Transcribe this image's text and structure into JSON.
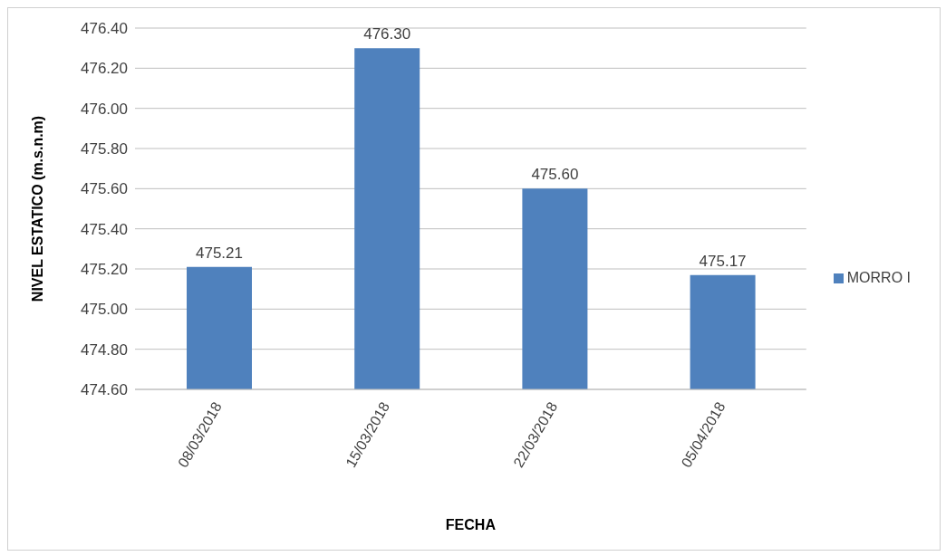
{
  "chart_data": {
    "type": "bar",
    "xlabel": "FECHA",
    "ylabel": "NIVEL ESTATICO (m.s.n.m)",
    "categories": [
      "08/03/2018",
      "15/03/2018",
      "22/03/2018",
      "05/04/2018"
    ],
    "series": [
      {
        "name": "MORRO I",
        "color": "#4f81bd",
        "values": [
          475.21,
          476.3,
          475.6,
          475.17
        ],
        "value_labels": [
          "475.21",
          "476.30",
          "475.60",
          "475.17"
        ]
      }
    ],
    "ylim": [
      474.6,
      476.4
    ],
    "yticks": [
      {
        "value": 474.6,
        "label": "474.60"
      },
      {
        "value": 474.8,
        "label": "474.80"
      },
      {
        "value": 475.0,
        "label": "475.00"
      },
      {
        "value": 475.2,
        "label": "475.20"
      },
      {
        "value": 475.4,
        "label": "475.40"
      },
      {
        "value": 475.6,
        "label": "475.60"
      },
      {
        "value": 475.8,
        "label": "475.80"
      },
      {
        "value": 476.0,
        "label": "476.00"
      },
      {
        "value": 476.2,
        "label": "476.20"
      },
      {
        "value": 476.4,
        "label": "476.40"
      }
    ],
    "grid": "y",
    "legend": "right"
  }
}
